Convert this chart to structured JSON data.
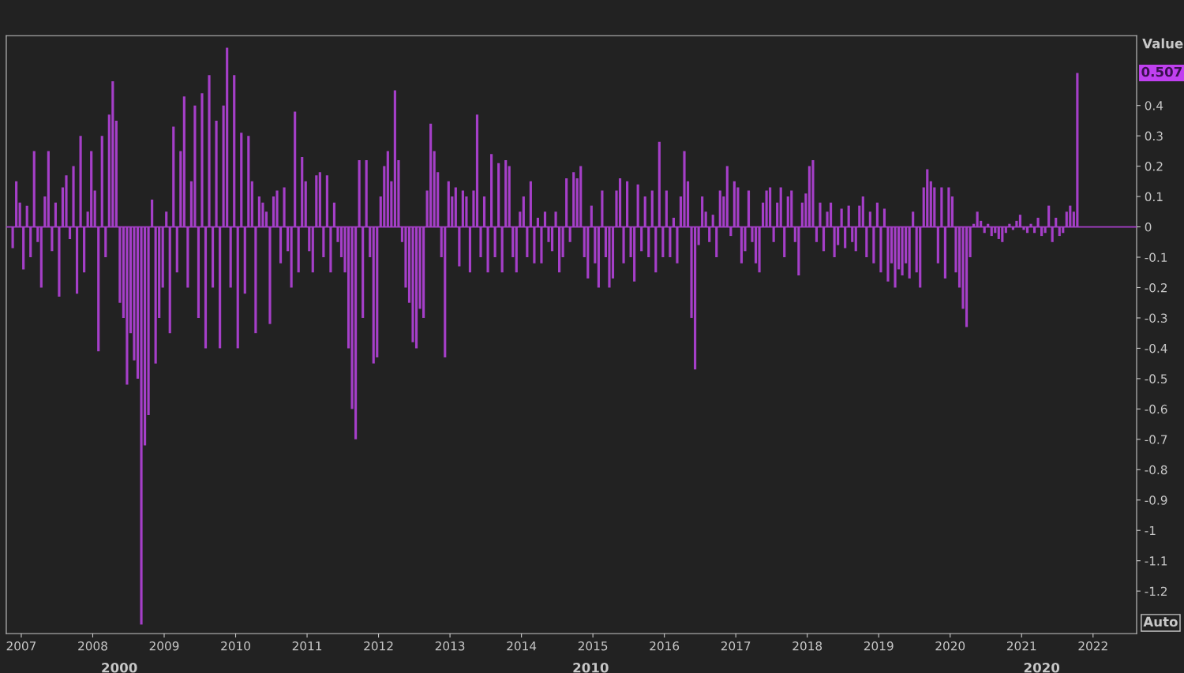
{
  "chart_data": {
    "type": "bar",
    "ylabel": "Value",
    "x": [
      2006.88,
      2006.93,
      2006.98,
      2007.03,
      2007.08,
      2007.13,
      2007.18,
      2007.23,
      2007.28,
      2007.33,
      2007.38,
      2007.43,
      2007.48,
      2007.53,
      2007.58,
      2007.63,
      2007.68,
      2007.73,
      2007.78,
      2007.83,
      2007.88,
      2007.93,
      2007.98,
      2008.03,
      2008.08,
      2008.13,
      2008.18,
      2008.23,
      2008.28,
      2008.33,
      2008.38,
      2008.43,
      2008.48,
      2008.53,
      2008.58,
      2008.63,
      2008.68,
      2008.73,
      2008.78,
      2008.83,
      2008.88,
      2008.93,
      2008.98,
      2009.03,
      2009.08,
      2009.13,
      2009.18,
      2009.23,
      2009.28,
      2009.33,
      2009.38,
      2009.43,
      2009.48,
      2009.53,
      2009.58,
      2009.63,
      2009.68,
      2009.73,
      2009.78,
      2009.83,
      2009.88,
      2009.93,
      2009.98,
      2010.03,
      2010.08,
      2010.13,
      2010.18,
      2010.23,
      2010.28,
      2010.33,
      2010.38,
      2010.43,
      2010.48,
      2010.53,
      2010.58,
      2010.63,
      2010.68,
      2010.73,
      2010.78,
      2010.83,
      2010.88,
      2010.93,
      2010.98,
      2011.03,
      2011.08,
      2011.13,
      2011.18,
      2011.23,
      2011.28,
      2011.33,
      2011.38,
      2011.43,
      2011.48,
      2011.53,
      2011.58,
      2011.63,
      2011.68,
      2011.73,
      2011.78,
      2011.83,
      2011.88,
      2011.93,
      2011.98,
      2012.03,
      2012.08,
      2012.13,
      2012.18,
      2012.23,
      2012.28,
      2012.33,
      2012.38,
      2012.43,
      2012.48,
      2012.53,
      2012.58,
      2012.63,
      2012.68,
      2012.73,
      2012.78,
      2012.83,
      2012.88,
      2012.93,
      2012.98,
      2013.03,
      2013.08,
      2013.13,
      2013.18,
      2013.23,
      2013.28,
      2013.33,
      2013.38,
      2013.43,
      2013.48,
      2013.53,
      2013.58,
      2013.63,
      2013.68,
      2013.73,
      2013.78,
      2013.83,
      2013.88,
      2013.93,
      2013.98,
      2014.03,
      2014.08,
      2014.13,
      2014.18,
      2014.23,
      2014.28,
      2014.33,
      2014.38,
      2014.43,
      2014.48,
      2014.53,
      2014.58,
      2014.63,
      2014.68,
      2014.73,
      2014.78,
      2014.83,
      2014.88,
      2014.93,
      2014.98,
      2015.03,
      2015.08,
      2015.13,
      2015.18,
      2015.23,
      2015.28,
      2015.33,
      2015.38,
      2015.43,
      2015.48,
      2015.53,
      2015.58,
      2015.63,
      2015.68,
      2015.73,
      2015.78,
      2015.83,
      2015.88,
      2015.93,
      2015.98,
      2016.03,
      2016.08,
      2016.13,
      2016.18,
      2016.23,
      2016.28,
      2016.33,
      2016.38,
      2016.43,
      2016.48,
      2016.53,
      2016.58,
      2016.63,
      2016.68,
      2016.73,
      2016.78,
      2016.83,
      2016.88,
      2016.93,
      2016.98,
      2017.03,
      2017.08,
      2017.13,
      2017.18,
      2017.23,
      2017.28,
      2017.33,
      2017.38,
      2017.43,
      2017.48,
      2017.53,
      2017.58,
      2017.63,
      2017.68,
      2017.73,
      2017.78,
      2017.83,
      2017.88,
      2017.93,
      2017.98,
      2018.03,
      2018.08,
      2018.13,
      2018.18,
      2018.23,
      2018.28,
      2018.33,
      2018.38,
      2018.43,
      2018.48,
      2018.53,
      2018.58,
      2018.63,
      2018.68,
      2018.73,
      2018.78,
      2018.83,
      2018.88,
      2018.93,
      2018.98,
      2019.03,
      2019.08,
      2019.13,
      2019.18,
      2019.23,
      2019.28,
      2019.33,
      2019.38,
      2019.43,
      2019.48,
      2019.53,
      2019.58,
      2019.63,
      2019.68,
      2019.73,
      2019.78,
      2019.83,
      2019.88,
      2019.93,
      2019.98,
      2020.03,
      2020.08,
      2020.13,
      2020.18,
      2020.23,
      2020.28,
      2020.33,
      2020.38,
      2020.43,
      2020.48,
      2020.53,
      2020.58,
      2020.63,
      2020.68,
      2020.73,
      2020.78,
      2020.83,
      2020.88,
      2020.93,
      2020.98,
      2021.03,
      2021.08,
      2021.13,
      2021.18,
      2021.23,
      2021.28,
      2021.33,
      2021.38,
      2021.43,
      2021.48,
      2021.53,
      2021.58,
      2021.63,
      2021.68,
      2021.73,
      2021.78
    ],
    "values": [
      -0.07,
      0.15,
      0.08,
      -0.14,
      0.07,
      -0.1,
      0.25,
      -0.05,
      -0.2,
      0.1,
      0.25,
      -0.08,
      0.08,
      -0.23,
      0.13,
      0.17,
      -0.04,
      0.2,
      -0.22,
      0.3,
      -0.15,
      0.05,
      0.25,
      0.12,
      -0.41,
      0.3,
      -0.1,
      0.37,
      0.48,
      0.35,
      -0.25,
      -0.3,
      -0.52,
      -0.35,
      -0.44,
      -0.5,
      -1.31,
      -0.72,
      -0.62,
      0.09,
      -0.45,
      -0.3,
      -0.2,
      0.05,
      -0.35,
      0.33,
      -0.15,
      0.25,
      0.43,
      -0.2,
      0.15,
      0.4,
      -0.3,
      0.44,
      -0.4,
      0.5,
      -0.2,
      0.35,
      -0.4,
      0.4,
      0.59,
      -0.2,
      0.5,
      -0.4,
      0.31,
      -0.22,
      0.3,
      0.15,
      -0.35,
      0.1,
      0.08,
      0.05,
      -0.32,
      0.1,
      0.12,
      -0.12,
      0.13,
      -0.08,
      -0.2,
      0.38,
      -0.15,
      0.23,
      0.15,
      -0.08,
      -0.15,
      0.17,
      0.18,
      -0.1,
      0.17,
      -0.15,
      0.08,
      -0.05,
      -0.1,
      -0.15,
      -0.4,
      -0.6,
      -0.7,
      0.22,
      -0.3,
      0.22,
      -0.1,
      -0.45,
      -0.43,
      0.1,
      0.2,
      0.25,
      0.15,
      0.45,
      0.22,
      -0.05,
      -0.2,
      -0.25,
      -0.38,
      -0.4,
      -0.27,
      -0.3,
      0.12,
      0.34,
      0.25,
      0.18,
      -0.1,
      -0.43,
      0.15,
      0.1,
      0.13,
      -0.13,
      0.12,
      0.1,
      -0.15,
      0.12,
      0.37,
      -0.1,
      0.1,
      -0.15,
      0.24,
      -0.1,
      0.21,
      -0.15,
      0.22,
      0.2,
      -0.1,
      -0.15,
      0.05,
      0.1,
      -0.1,
      0.15,
      -0.12,
      0.03,
      -0.12,
      0.05,
      -0.05,
      -0.08,
      0.05,
      -0.15,
      -0.1,
      0.16,
      -0.05,
      0.18,
      0.16,
      0.2,
      -0.1,
      -0.17,
      0.07,
      -0.12,
      -0.2,
      0.12,
      -0.1,
      -0.2,
      -0.17,
      0.12,
      0.16,
      -0.12,
      0.15,
      -0.1,
      -0.18,
      0.14,
      -0.08,
      0.1,
      -0.1,
      0.12,
      -0.15,
      0.28,
      -0.1,
      0.12,
      -0.1,
      0.03,
      -0.12,
      0.1,
      0.25,
      0.15,
      -0.3,
      -0.47,
      -0.06,
      0.1,
      0.05,
      -0.05,
      0.04,
      -0.1,
      0.12,
      0.1,
      0.2,
      -0.03,
      0.15,
      0.13,
      -0.12,
      -0.08,
      0.12,
      -0.05,
      -0.12,
      -0.15,
      0.08,
      0.12,
      0.13,
      -0.05,
      0.08,
      0.13,
      -0.1,
      0.1,
      0.12,
      -0.05,
      -0.16,
      0.08,
      0.11,
      0.2,
      0.22,
      -0.05,
      0.08,
      -0.08,
      0.05,
      0.08,
      -0.1,
      -0.06,
      0.06,
      -0.07,
      0.07,
      -0.05,
      -0.08,
      0.07,
      0.1,
      -0.1,
      0.05,
      -0.12,
      0.08,
      -0.15,
      0.06,
      -0.18,
      -0.12,
      -0.2,
      -0.14,
      -0.16,
      -0.12,
      -0.17,
      0.05,
      -0.15,
      -0.2,
      0.13,
      0.19,
      0.15,
      0.13,
      -0.12,
      0.13,
      -0.17,
      0.13,
      0.1,
      -0.15,
      -0.2,
      -0.27,
      -0.33,
      -0.1,
      0.01,
      0.05,
      0.02,
      -0.02,
      0.01,
      -0.03,
      -0.02,
      -0.04,
      -0.05,
      -0.02,
      0.01,
      -0.01,
      0.02,
      0.04,
      -0.01,
      -0.02,
      0.01,
      -0.02,
      0.03,
      -0.03,
      -0.02,
      0.07,
      -0.05,
      0.03,
      -0.03,
      -0.02,
      0.05,
      0.07,
      0.05,
      0.507
    ],
    "color": "#a53fc8",
    "xlim": [
      2006.79,
      2022.61
    ],
    "xticks": [
      2007,
      2008,
      2009,
      2010,
      2011,
      2012,
      2013,
      2014,
      2015,
      2016,
      2017,
      2018,
      2019,
      2020,
      2021,
      2022
    ],
    "ylim": [
      -1.34,
      0.63
    ],
    "yticks": [
      0.4,
      0.3,
      0.2,
      0.1,
      0,
      -0.1,
      -0.2,
      -0.3,
      -0.4,
      -0.5,
      -0.6,
      -0.7,
      -0.8,
      -0.9,
      -1,
      -1.1,
      -1.2
    ],
    "ref_lines": [
      {
        "axis": "y",
        "value": 0,
        "color": "#a53fc8"
      }
    ],
    "grid": false,
    "annotations": [
      "0.507",
      "2000",
      "2010",
      "2020",
      "Auto"
    ]
  }
}
